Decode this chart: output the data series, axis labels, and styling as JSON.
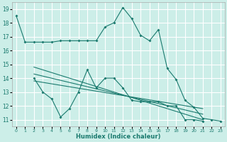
{
  "xlabel": "Humidex (Indice chaleur)",
  "background_color": "#cceee8",
  "grid_color": "#ffffff",
  "line_color": "#1a7a6e",
  "x_ticks": [
    0,
    1,
    2,
    3,
    4,
    5,
    6,
    7,
    8,
    9,
    10,
    11,
    12,
    13,
    14,
    15,
    16,
    17,
    18,
    19,
    20,
    21,
    22,
    23
  ],
  "y_ticks": [
    11,
    12,
    13,
    14,
    15,
    16,
    17,
    18,
    19
  ],
  "ylim": [
    10.5,
    19.5
  ],
  "xlim": [
    -0.5,
    23.5
  ],
  "series": [
    {
      "x": [
        0,
        1,
        2,
        3,
        4,
        5,
        6,
        7,
        8,
        9,
        10,
        11,
        12,
        13,
        14,
        15,
        16,
        17,
        18,
        19,
        20,
        21,
        22,
        23
      ],
      "y": [
        18.5,
        16.6,
        16.6,
        16.6,
        16.6,
        16.7,
        16.7,
        16.7,
        16.7,
        16.7,
        17.7,
        18.0,
        19.1,
        18.3,
        17.1,
        16.7,
        17.5,
        14.7,
        13.9,
        12.4,
        11.9,
        11.1,
        11.0,
        10.9
      ]
    },
    {
      "x": [
        2,
        3,
        4,
        5,
        6,
        7,
        8,
        9,
        10,
        11,
        12,
        13,
        14,
        15,
        16,
        17,
        18,
        19,
        20,
        21
      ],
      "y": [
        14.0,
        13.0,
        12.5,
        11.2,
        11.8,
        13.0,
        14.6,
        13.3,
        14.0,
        14.0,
        13.3,
        12.4,
        12.3,
        12.3,
        12.3,
        12.0,
        12.0,
        11.0,
        11.0,
        10.9
      ]
    },
    {
      "x": [
        2,
        21
      ],
      "y": [
        14.8,
        11.0
      ]
    },
    {
      "x": [
        2,
        21
      ],
      "y": [
        14.3,
        11.4
      ]
    },
    {
      "x": [
        2,
        21
      ],
      "y": [
        13.8,
        11.8
      ]
    }
  ]
}
